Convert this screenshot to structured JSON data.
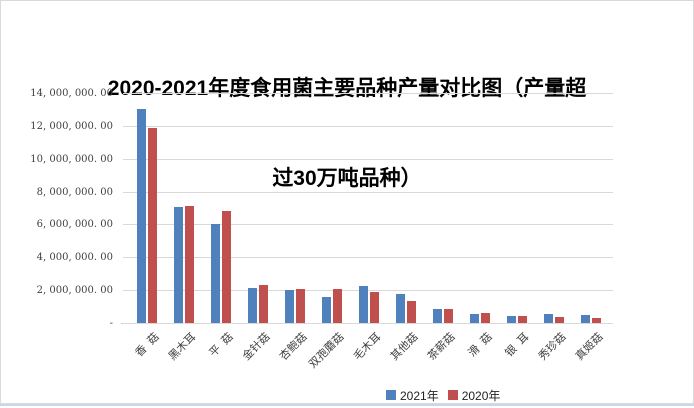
{
  "title": {
    "full": "2020-2021年度食用菌主要品种产量对比图（产量超过30万吨品种）",
    "line1": "2020-2021年度食用菌主要品种产量对比图（产量超",
    "line2": "过30万吨品种）"
  },
  "colors": {
    "series_2021": "#4f81bd",
    "series_2020": "#c0504d",
    "gridline": "#d9d9d9",
    "chart_border": "#d9d9d9",
    "bottom_edge": "#c9d7ee",
    "axis_text": "#3f3f3f",
    "title_text": "#000000"
  },
  "chart_data": {
    "type": "bar",
    "title": "2020-2021年度食用菌主要品种产量对比图（产量超过30万吨品种）",
    "xlabel": "",
    "ylabel": "",
    "ylim": [
      0,
      14000000
    ],
    "grid": true,
    "legend_position": "bottom",
    "categories": [
      "香  菇",
      "黑木耳",
      "平  菇",
      "金针菇",
      "杏鲍菇",
      "双孢蘑菇",
      "毛木耳",
      "其他菇",
      "茶薪菇",
      "滑  菇",
      "银  耳",
      "秀珍菇",
      "真姬菇"
    ],
    "series": [
      {
        "name": "2021年",
        "color": "#4f81bd",
        "values": [
          13000000,
          7050000,
          6050000,
          2150000,
          2040000,
          1610000,
          2230000,
          1790000,
          860000,
          550000,
          430000,
          550000,
          470000
        ]
      },
      {
        "name": "2020年",
        "color": "#c0504d",
        "values": [
          11900000,
          7100000,
          6800000,
          2300000,
          2100000,
          2080000,
          1860000,
          1360000,
          870000,
          590000,
          450000,
          390000,
          310000
        ]
      }
    ],
    "y_tick_labels": [
      "14, 000, 000. 00",
      "12, 000, 000. 00",
      "10, 000, 000. 00",
      "8, 000, 000. 00",
      "6, 000, 000. 00",
      "4, 000, 000. 00",
      "2, 000, 000. 00",
      "-"
    ]
  }
}
